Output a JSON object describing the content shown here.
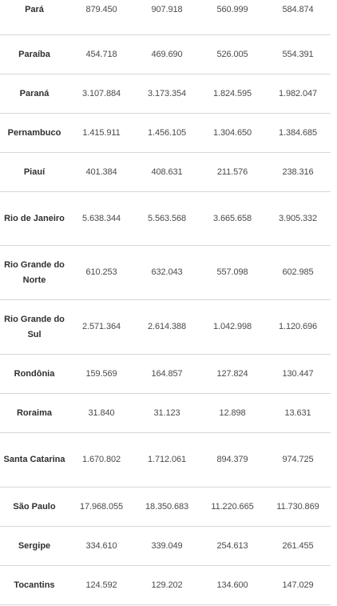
{
  "table": {
    "rows": [
      {
        "state": "Pará",
        "v1": "879.450",
        "v2": "907.918",
        "v3": "560.999",
        "v4": "584.874"
      },
      {
        "state": "Paraíba",
        "v1": "454.718",
        "v2": "469.690",
        "v3": "526.005",
        "v4": "554.391"
      },
      {
        "state": "Paraná",
        "v1": "3.107.884",
        "v2": "3.173.354",
        "v3": "1.824.595",
        "v4": "1.982.047"
      },
      {
        "state": "Pernambuco",
        "v1": "1.415.911",
        "v2": "1.456.105",
        "v3": "1.304.650",
        "v4": "1.384.685"
      },
      {
        "state": "Piauí",
        "v1": "401.384",
        "v2": "408.631",
        "v3": "211.576",
        "v4": "238.316"
      },
      {
        "state": "Rio de Janeiro",
        "v1": "5.638.344",
        "v2": "5.563.568",
        "v3": "3.665.658",
        "v4": "3.905.332"
      },
      {
        "state": "Rio Grande do Norte",
        "v1": "610.253",
        "v2": "632.043",
        "v3": "557.098",
        "v4": "602.985"
      },
      {
        "state": "Rio Grande do Sul",
        "v1": "2.571.364",
        "v2": "2.614.388",
        "v3": "1.042.998",
        "v4": "1.120.696"
      },
      {
        "state": "Rondônia",
        "v1": "159.569",
        "v2": "164.857",
        "v3": "127.824",
        "v4": "130.447"
      },
      {
        "state": "Roraima",
        "v1": "31.840",
        "v2": "31.123",
        "v3": "12.898",
        "v4": "13.631"
      },
      {
        "state": "Santa Catarina",
        "v1": "1.670.802",
        "v2": "1.712.061",
        "v3": "894.379",
        "v4": "974.725"
      },
      {
        "state": "São Paulo",
        "v1": "17.968.055",
        "v2": "18.350.683",
        "v3": "11.220.665",
        "v4": "11.730.869"
      },
      {
        "state": "Sergipe",
        "v1": "334.610",
        "v2": "339.049",
        "v3": "254.613",
        "v4": "261.455"
      },
      {
        "state": "Tocantins",
        "v1": "124.592",
        "v2": "129.202",
        "v3": "134.600",
        "v4": "147.029"
      }
    ]
  }
}
